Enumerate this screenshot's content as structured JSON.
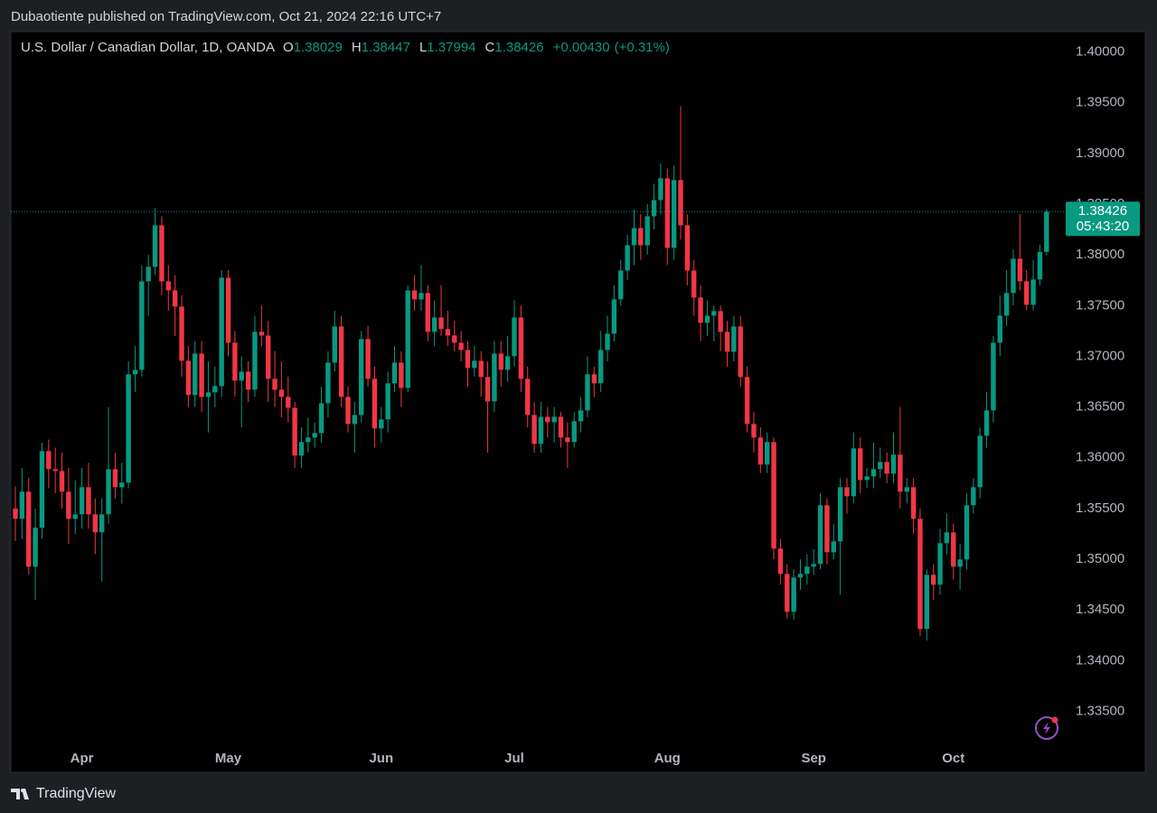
{
  "chart_data": {
    "type": "candlestick",
    "published": "Dubaotiente published on TradingView.com, Oct 21, 2024 22:16 UTC+7",
    "title": "U.S. Dollar / Canadian Dollar, 1D, OANDA",
    "ohlc_labels": [
      "O",
      "H",
      "L",
      "C"
    ],
    "change": "+0.00430",
    "change_pct": "(+0.31%)",
    "countdown": "05:43:20",
    "brand": "TradingView",
    "up_color": "#089981",
    "down_color": "#f23645",
    "ylim": [
      1.329,
      1.402
    ],
    "yticks": [
      {
        "value": 1.335,
        "label": "1.33500"
      },
      {
        "value": 1.34,
        "label": "1.34000"
      },
      {
        "value": 1.345,
        "label": "1.34500"
      },
      {
        "value": 1.35,
        "label": "1.35000"
      },
      {
        "value": 1.355,
        "label": "1.35500"
      },
      {
        "value": 1.36,
        "label": "1.36000"
      },
      {
        "value": 1.365,
        "label": "1.36500"
      },
      {
        "value": 1.37,
        "label": "1.37000"
      },
      {
        "value": 1.375,
        "label": "1.37500"
      },
      {
        "value": 1.38,
        "label": "1.38000"
      },
      {
        "value": 1.385,
        "label": "1.38500"
      },
      {
        "value": 1.39,
        "label": "1.39000"
      },
      {
        "value": 1.395,
        "label": "1.39500"
      },
      {
        "value": 1.4,
        "label": "1.40000"
      }
    ],
    "categories": [
      null,
      null,
      null,
      null,
      null,
      null,
      null,
      null,
      null,
      null,
      "Apr",
      null,
      null,
      null,
      null,
      null,
      null,
      null,
      null,
      null,
      null,
      null,
      null,
      null,
      null,
      null,
      null,
      null,
      null,
      null,
      null,
      null,
      "May",
      null,
      null,
      null,
      null,
      null,
      null,
      null,
      null,
      null,
      null,
      null,
      null,
      null,
      null,
      null,
      null,
      null,
      null,
      null,
      null,
      null,
      null,
      "Jun",
      null,
      null,
      null,
      null,
      null,
      null,
      null,
      null,
      null,
      null,
      null,
      null,
      null,
      null,
      null,
      null,
      null,
      null,
      null,
      "Jul",
      null,
      null,
      null,
      null,
      null,
      null,
      null,
      null,
      null,
      null,
      null,
      null,
      null,
      null,
      null,
      null,
      null,
      null,
      null,
      null,
      null,
      null,
      "Aug",
      null,
      null,
      null,
      null,
      null,
      null,
      null,
      null,
      null,
      null,
      null,
      null,
      null,
      null,
      null,
      null,
      null,
      null,
      null,
      null,
      null,
      "Sep",
      null,
      null,
      null,
      null,
      null,
      null,
      null,
      null,
      null,
      null,
      null,
      null,
      null,
      null,
      null,
      null,
      null,
      null,
      null,
      null,
      "Oct",
      null,
      null,
      null,
      null,
      null,
      null,
      null,
      null,
      null,
      null,
      null,
      null,
      null,
      null
    ],
    "candles": [
      [
        1.355,
        1.3572,
        1.3518,
        1.35399
      ],
      [
        1.35399,
        1.359,
        1.352,
        1.35666
      ],
      [
        1.35666,
        1.358,
        1.3485,
        1.34927
      ],
      [
        1.34927,
        1.355,
        1.346,
        1.3531
      ],
      [
        1.3531,
        1.3615,
        1.352,
        1.36066
      ],
      [
        1.36066,
        1.3618,
        1.357,
        1.35888
      ],
      [
        1.35888,
        1.361,
        1.3565,
        1.3587
      ],
      [
        1.3587,
        1.3605,
        1.355,
        1.35666
      ],
      [
        1.35666,
        1.359,
        1.3515,
        1.35399
      ],
      [
        1.35399,
        1.3578,
        1.3525,
        1.35443
      ],
      [
        1.35443,
        1.359,
        1.353,
        1.3571
      ],
      [
        1.3571,
        1.3595,
        1.353,
        1.35443
      ],
      [
        1.35443,
        1.356,
        1.3505,
        1.35265
      ],
      [
        1.35265,
        1.356,
        1.3478,
        1.35443
      ],
      [
        1.35443,
        1.365,
        1.3535,
        1.35888
      ],
      [
        1.35888,
        1.3605,
        1.356,
        1.3571
      ],
      [
        1.3571,
        1.3595,
        1.3555,
        1.35755
      ],
      [
        1.35755,
        1.3695,
        1.357,
        1.36823
      ],
      [
        1.36823,
        1.371,
        1.3665,
        1.36867
      ],
      [
        1.36867,
        1.379,
        1.368,
        1.37739
      ],
      [
        1.37739,
        1.38,
        1.374,
        1.37882
      ],
      [
        1.37882,
        1.3846,
        1.378,
        1.38291
      ],
      [
        1.38291,
        1.3838,
        1.376,
        1.37739
      ],
      [
        1.37739,
        1.379,
        1.3745,
        1.3765
      ],
      [
        1.3765,
        1.378,
        1.372,
        1.3749
      ],
      [
        1.3749,
        1.376,
        1.368,
        1.36956
      ],
      [
        1.36956,
        1.371,
        1.365,
        1.36618
      ],
      [
        1.36618,
        1.3715,
        1.365,
        1.37027
      ],
      [
        1.37027,
        1.3715,
        1.3645,
        1.366
      ],
      [
        1.366,
        1.3695,
        1.3625,
        1.36645
      ],
      [
        1.36645,
        1.369,
        1.365,
        1.36707
      ],
      [
        1.36707,
        1.3785,
        1.366,
        1.37775
      ],
      [
        1.37775,
        1.3785,
        1.37,
        1.37134
      ],
      [
        1.37134,
        1.3725,
        1.366,
        1.3676
      ],
      [
        1.3676,
        1.37,
        1.363,
        1.36849
      ],
      [
        1.36849,
        1.3695,
        1.3655,
        1.36671
      ],
      [
        1.36671,
        1.374,
        1.366,
        1.37241
      ],
      [
        1.37241,
        1.375,
        1.371,
        1.37205
      ],
      [
        1.37205,
        1.3735,
        1.3655,
        1.36778
      ],
      [
        1.36778,
        1.3705,
        1.365,
        1.36671
      ],
      [
        1.36671,
        1.3695,
        1.364,
        1.366
      ],
      [
        1.366,
        1.368,
        1.3635,
        1.36493
      ],
      [
        1.36493,
        1.3655,
        1.359,
        1.36022
      ],
      [
        1.36022,
        1.363,
        1.359,
        1.36155
      ],
      [
        1.36155,
        1.364,
        1.3605,
        1.362
      ],
      [
        1.362,
        1.3635,
        1.361,
        1.36244
      ],
      [
        1.36244,
        1.367,
        1.3615,
        1.36538
      ],
      [
        1.36538,
        1.3705,
        1.364,
        1.36938
      ],
      [
        1.36938,
        1.3745,
        1.3685,
        1.37294
      ],
      [
        1.37294,
        1.374,
        1.365,
        1.366
      ],
      [
        1.366,
        1.367,
        1.3625,
        1.36333
      ],
      [
        1.36333,
        1.3655,
        1.3605,
        1.36422
      ],
      [
        1.36422,
        1.3725,
        1.3635,
        1.3717
      ],
      [
        1.3717,
        1.373,
        1.367,
        1.36778
      ],
      [
        1.36778,
        1.369,
        1.361,
        1.36289
      ],
      [
        1.36289,
        1.365,
        1.3615,
        1.36378
      ],
      [
        1.36378,
        1.3685,
        1.3625,
        1.36734
      ],
      [
        1.36734,
        1.371,
        1.3665,
        1.36938
      ],
      [
        1.36938,
        1.3705,
        1.365,
        1.36689
      ],
      [
        1.36689,
        1.377,
        1.3665,
        1.3765
      ],
      [
        1.3765,
        1.378,
        1.3745,
        1.37561
      ],
      [
        1.37561,
        1.379,
        1.3745,
        1.37624
      ],
      [
        1.37624,
        1.377,
        1.3715,
        1.37241
      ],
      [
        1.37241,
        1.3755,
        1.371,
        1.37383
      ],
      [
        1.37383,
        1.377,
        1.372,
        1.37268
      ],
      [
        1.37268,
        1.3745,
        1.371,
        1.37205
      ],
      [
        1.37205,
        1.3735,
        1.3705,
        1.37134
      ],
      [
        1.37134,
        1.3725,
        1.3695,
        1.37063
      ],
      [
        1.37063,
        1.3715,
        1.367,
        1.36885
      ],
      [
        1.36885,
        1.371,
        1.368,
        1.36956
      ],
      [
        1.36956,
        1.3705,
        1.366,
        1.36796
      ],
      [
        1.36796,
        1.3695,
        1.3605,
        1.36556
      ],
      [
        1.36556,
        1.3715,
        1.3645,
        1.37027
      ],
      [
        1.37027,
        1.3715,
        1.367,
        1.36867
      ],
      [
        1.36867,
        1.372,
        1.3675,
        1.37001
      ],
      [
        1.37001,
        1.3755,
        1.369,
        1.37383
      ],
      [
        1.37383,
        1.375,
        1.3665,
        1.36778
      ],
      [
        1.36778,
        1.369,
        1.363,
        1.36422
      ],
      [
        1.36422,
        1.3655,
        1.3605,
        1.36137
      ],
      [
        1.36137,
        1.3655,
        1.3605,
        1.36404
      ],
      [
        1.36404,
        1.365,
        1.362,
        1.36351
      ],
      [
        1.36351,
        1.365,
        1.3615,
        1.36404
      ],
      [
        1.36404,
        1.3645,
        1.361,
        1.362
      ],
      [
        1.362,
        1.3635,
        1.359,
        1.36155
      ],
      [
        1.36155,
        1.3645,
        1.361,
        1.3636
      ],
      [
        1.3636,
        1.366,
        1.3625,
        1.36467
      ],
      [
        1.36467,
        1.37,
        1.364,
        1.36823
      ],
      [
        1.36823,
        1.369,
        1.366,
        1.36734
      ],
      [
        1.36734,
        1.3725,
        1.3665,
        1.37063
      ],
      [
        1.37063,
        1.374,
        1.3695,
        1.37223
      ],
      [
        1.37223,
        1.377,
        1.3715,
        1.37561
      ],
      [
        1.37561,
        1.3795,
        1.375,
        1.37846
      ],
      [
        1.37846,
        1.382,
        1.3775,
        1.38095
      ],
      [
        1.38095,
        1.3845,
        1.379,
        1.38264
      ],
      [
        1.38264,
        1.384,
        1.3795,
        1.38095
      ],
      [
        1.38095,
        1.385,
        1.38,
        1.3838
      ],
      [
        1.3838,
        1.387,
        1.3825,
        1.3854
      ],
      [
        1.3854,
        1.389,
        1.384,
        1.38754
      ],
      [
        1.38754,
        1.3885,
        1.379,
        1.38069
      ],
      [
        1.38069,
        1.3888,
        1.3795,
        1.38737
      ],
      [
        1.38737,
        1.39466,
        1.3815,
        1.38291
      ],
      [
        1.38291,
        1.384,
        1.377,
        1.37846
      ],
      [
        1.37846,
        1.3795,
        1.374,
        1.37579
      ],
      [
        1.37579,
        1.377,
        1.3715,
        1.3733
      ],
      [
        1.3733,
        1.3755,
        1.372,
        1.37401
      ],
      [
        1.37401,
        1.375,
        1.3715,
        1.37446
      ],
      [
        1.37446,
        1.375,
        1.3705,
        1.37241
      ],
      [
        1.37241,
        1.3735,
        1.369,
        1.37045
      ],
      [
        1.37045,
        1.374,
        1.3695,
        1.37294
      ],
      [
        1.37294,
        1.374,
        1.367,
        1.36796
      ],
      [
        1.36796,
        1.369,
        1.3625,
        1.36333
      ],
      [
        1.36333,
        1.3645,
        1.3605,
        1.362
      ],
      [
        1.362,
        1.363,
        1.3585,
        1.35933
      ],
      [
        1.35933,
        1.3625,
        1.3585,
        1.36155
      ],
      [
        1.36155,
        1.362,
        1.35,
        1.35105
      ],
      [
        1.35105,
        1.352,
        1.3475,
        1.34856
      ],
      [
        1.34856,
        1.3495,
        1.3442,
        1.34482
      ],
      [
        1.34482,
        1.349,
        1.344,
        1.3482
      ],
      [
        1.3482,
        1.35,
        1.347,
        1.34856
      ],
      [
        1.34856,
        1.3505,
        1.3475,
        1.34927
      ],
      [
        1.34927,
        1.351,
        1.3485,
        1.34954
      ],
      [
        1.34954,
        1.3565,
        1.349,
        1.35532
      ],
      [
        1.35532,
        1.356,
        1.3495,
        1.35069
      ],
      [
        1.35069,
        1.3535,
        1.35,
        1.35176
      ],
      [
        1.35176,
        1.358,
        1.3465,
        1.3571
      ],
      [
        1.3571,
        1.358,
        1.3545,
        1.35621
      ],
      [
        1.35621,
        1.3625,
        1.3555,
        1.36093
      ],
      [
        1.36093,
        1.362,
        1.3565,
        1.35781
      ],
      [
        1.35781,
        1.359,
        1.357,
        1.35817
      ],
      [
        1.35817,
        1.3615,
        1.357,
        1.35888
      ],
      [
        1.35888,
        1.361,
        1.358,
        1.35959
      ],
      [
        1.35959,
        1.3605,
        1.3575,
        1.35844
      ],
      [
        1.35844,
        1.3625,
        1.3575,
        1.36031
      ],
      [
        1.36031,
        1.365,
        1.355,
        1.35666
      ],
      [
        1.35666,
        1.358,
        1.3555,
        1.3571
      ],
      [
        1.3571,
        1.358,
        1.3525,
        1.35399
      ],
      [
        1.35399,
        1.355,
        1.34242,
        1.34313
      ],
      [
        1.34313,
        1.349,
        1.342,
        1.34847
      ],
      [
        1.34847,
        1.3495,
        1.346,
        1.34749
      ],
      [
        1.34749,
        1.353,
        1.3465,
        1.35158
      ],
      [
        1.35158,
        1.3545,
        1.3505,
        1.35265
      ],
      [
        1.35265,
        1.3535,
        1.348,
        1.34927
      ],
      [
        1.34927,
        1.3515,
        1.347,
        1.34998
      ],
      [
        1.34998,
        1.3565,
        1.349,
        1.35532
      ],
      [
        1.35532,
        1.358,
        1.3545,
        1.3571
      ],
      [
        1.3571,
        1.363,
        1.356,
        1.36217
      ],
      [
        1.36217,
        1.3665,
        1.361,
        1.36467
      ],
      [
        1.36467,
        1.372,
        1.3635,
        1.37134
      ],
      [
        1.37134,
        1.376,
        1.37,
        1.37401
      ],
      [
        1.37401,
        1.3785,
        1.373,
        1.37624
      ],
      [
        1.37624,
        1.3805,
        1.375,
        1.37962
      ],
      [
        1.37962,
        1.384,
        1.3765,
        1.37739
      ],
      [
        1.37739,
        1.3785,
        1.3745,
        1.37508
      ],
      [
        1.37508,
        1.3795,
        1.3745,
        1.37757
      ],
      [
        1.37757,
        1.381,
        1.377,
        1.38029
      ],
      [
        1.38029,
        1.38447,
        1.37994,
        1.38426
      ]
    ]
  }
}
